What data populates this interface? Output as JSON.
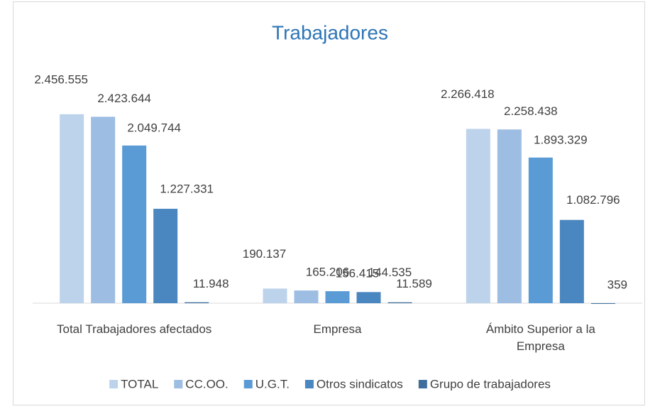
{
  "chart_data": {
    "type": "bar",
    "title": "Trabajadores",
    "categories": [
      "Total Trabajadores afectados",
      "Empresa",
      "Ámbito Superior a la Empresa"
    ],
    "series": [
      {
        "name": "TOTAL",
        "color": "#bdd3ec",
        "values": [
          2456555,
          190137,
          2266418
        ],
        "value_labels": [
          "2.456.555",
          "190.137",
          "2.266.418"
        ]
      },
      {
        "name": "CC.OO.",
        "color": "#9dbde3",
        "values": [
          2423644,
          165206,
          2258438
        ],
        "value_labels": [
          "2.423.644",
          "165.206",
          "2.258.438"
        ]
      },
      {
        "name": "U.G.T.",
        "color": "#5b9bd5",
        "values": [
          2049744,
          156415,
          1893329
        ],
        "value_labels": [
          "2.049.744",
          "156.415",
          "1.893.329"
        ]
      },
      {
        "name": "Otros sindicatos",
        "color": "#4a86bf",
        "values": [
          1227331,
          144535,
          1082796
        ],
        "value_labels": [
          "1.227.331",
          "144.535",
          "1.082.796"
        ]
      },
      {
        "name": "Grupo de trabajadores",
        "color": "#3d6e9e",
        "values": [
          11948,
          11589,
          359
        ],
        "value_labels": [
          "11.948",
          "11.589",
          "359"
        ]
      }
    ],
    "ylim": [
      0,
      3000000
    ],
    "grid": false,
    "legend": "bottom"
  }
}
